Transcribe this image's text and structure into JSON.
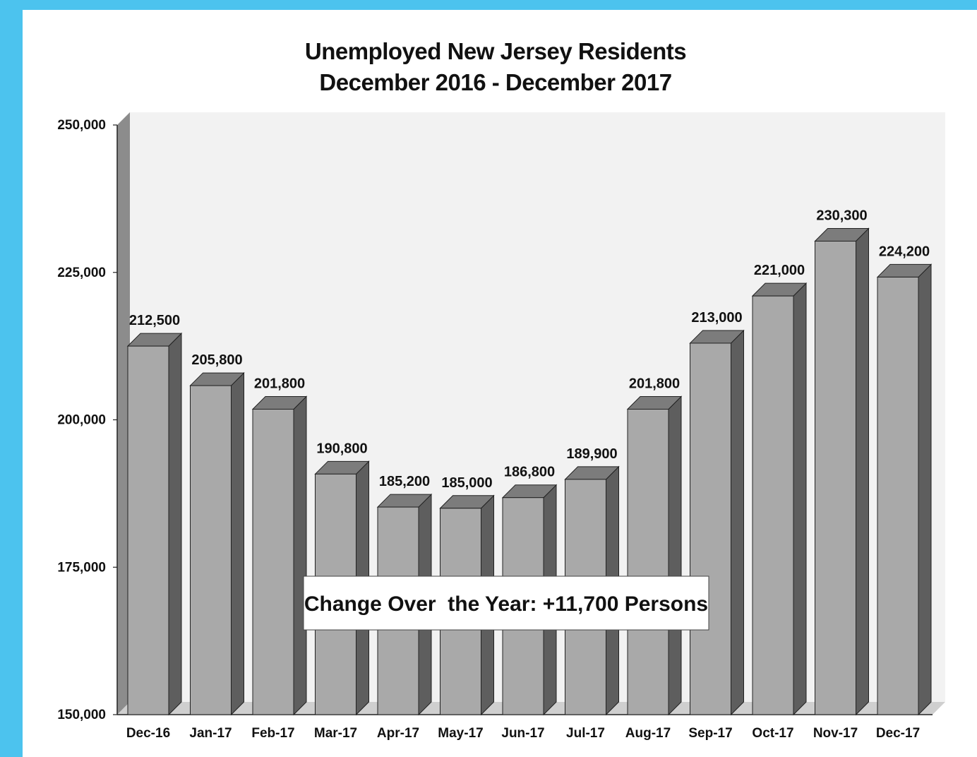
{
  "chart_data": {
    "type": "bar",
    "title": "Unemployed New Jersey Residents",
    "subtitle": "December 2016 - December 2017",
    "categories": [
      "Dec-16",
      "Jan-17",
      "Feb-17",
      "Mar-17",
      "Apr-17",
      "May-17",
      "Jun-17",
      "Jul-17",
      "Aug-17",
      "Sep-17",
      "Oct-17",
      "Nov-17",
      "Dec-17"
    ],
    "values": [
      212500,
      205800,
      201800,
      190800,
      185200,
      185000,
      186800,
      189900,
      201800,
      213000,
      221000,
      230300,
      224200
    ],
    "value_labels": [
      "212,500",
      "205,800",
      "201,800",
      "190,800",
      "185,200",
      "185,000",
      "186,800",
      "189,900",
      "201,800",
      "213,000",
      "221,000",
      "230,300",
      "224,200"
    ],
    "ylim": [
      150000,
      250000
    ],
    "yticks": [
      150000,
      175000,
      200000,
      225000,
      250000
    ],
    "ytick_labels": [
      "150,000",
      "175,000",
      "200,000",
      "225,000",
      "250,000"
    ],
    "annotation": "Change Over  the Year: +11,700 Persons",
    "grid": false,
    "legend": "none",
    "style": "3d-column",
    "colors": {
      "bar_front": "#a9a9a9",
      "bar_side": "#5e5e5e",
      "bar_top": "#7c7c7c",
      "plot_back": "#f2f2f2",
      "frame": "#4cc3ee"
    }
  }
}
